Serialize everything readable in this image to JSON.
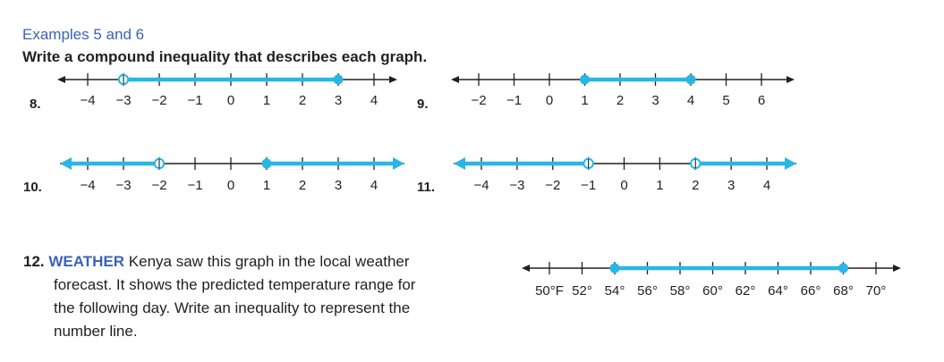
{
  "colors": {
    "accent": "#29b6e6",
    "heading": "#3a63b8",
    "text": "#231f20"
  },
  "heading": "Examples 5 and 6",
  "instruction": "Write a compound inequality that describes each graph.",
  "problems": [
    {
      "number": "8.",
      "ticks": [
        "−4",
        "−3",
        "−2",
        "−1",
        "0",
        "1",
        "2",
        "3",
        "4"
      ]
    },
    {
      "number": "9.",
      "ticks": [
        "−2",
        "−1",
        "0",
        "1",
        "2",
        "3",
        "4",
        "5",
        "6"
      ]
    },
    {
      "number": "10.",
      "ticks": [
        "−4",
        "−3",
        "−2",
        "−1",
        "0",
        "1",
        "2",
        "3",
        "4"
      ]
    },
    {
      "number": "11.",
      "ticks": [
        "−4",
        "−3",
        "−2",
        "−1",
        "0",
        "1",
        "2",
        "3",
        "4"
      ]
    }
  ],
  "graphs": [
    {
      "id": "8",
      "min": -4,
      "max": 4,
      "shade": [
        [
          -3,
          3
        ]
      ],
      "points": [
        {
          "value": -3,
          "closed": false
        },
        {
          "value": 3,
          "closed": true
        }
      ]
    },
    {
      "id": "9",
      "min": -2,
      "max": 6,
      "shade": [
        [
          1,
          4
        ]
      ],
      "points": [
        {
          "value": 1,
          "closed": true
        },
        {
          "value": 4,
          "closed": true
        }
      ]
    },
    {
      "id": "10",
      "min": -4,
      "max": 4,
      "shade": [
        [
          "-inf",
          -2
        ],
        [
          1,
          "inf"
        ]
      ],
      "points": [
        {
          "value": -2,
          "closed": false
        },
        {
          "value": 1,
          "closed": true
        }
      ]
    },
    {
      "id": "11",
      "min": -4,
      "max": 4,
      "shade": [
        [
          "-inf",
          -1
        ],
        [
          2,
          "inf"
        ]
      ],
      "points": [
        {
          "value": -1,
          "closed": false
        },
        {
          "value": 2,
          "closed": false
        }
      ]
    },
    {
      "id": "12",
      "min": 50,
      "max": 70,
      "shade": [
        [
          54,
          68
        ]
      ],
      "points": [
        {
          "value": 54,
          "closed": true
        },
        {
          "value": 68,
          "closed": true
        }
      ]
    }
  ],
  "problem12": {
    "number": "12.",
    "keyword": "WEATHER",
    "line1": "Kenya saw this graph in the local weather",
    "line2": "forecast. It shows the predicted temperature range for",
    "line3": "the following day. Write an inequality to represent the",
    "line4": "number line.",
    "ticks": [
      "50°F",
      "52°",
      "54°",
      "56°",
      "58°",
      "60°",
      "62°",
      "64°",
      "66°",
      "68°",
      "70°"
    ]
  }
}
